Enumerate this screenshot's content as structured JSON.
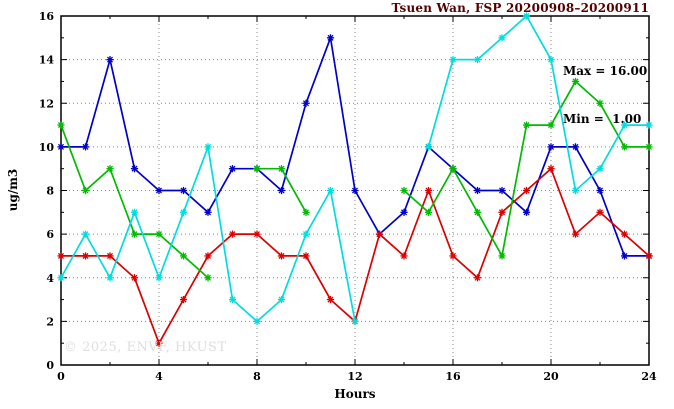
{
  "title": "Tsuen Wan, FSP 20200908–20200911",
  "annotation": {
    "max_label": "Max = 16.00",
    "min_label": "Min =  1.00"
  },
  "watermark": "© 2025, ENVF, HKUST",
  "colors": {
    "title": "#550000",
    "annotation": "#000000",
    "axis": "#000000",
    "grid": "#888888",
    "watermark": "#dedede",
    "background": "#ffffff"
  },
  "chart_data": {
    "type": "line",
    "title": "Tsuen Wan, FSP 20200908–20200911",
    "xlabel": "Hours",
    "ylabel": "ug/m3",
    "xlim": [
      0,
      24
    ],
    "ylim": [
      0,
      16
    ],
    "x_major_ticks": [
      0,
      4,
      8,
      12,
      16,
      20,
      24
    ],
    "x_minor_step": 2,
    "y_major_ticks": [
      0,
      2,
      4,
      6,
      8,
      10,
      12,
      14,
      16
    ],
    "y_minor_step": 1,
    "grid": true,
    "legend_position": "none",
    "marker": "asterisk",
    "stat_max": 16.0,
    "stat_min": 1.0,
    "x": [
      0,
      1,
      2,
      3,
      4,
      5,
      6,
      7,
      8,
      9,
      10,
      11,
      12,
      13,
      14,
      15,
      16,
      17,
      18,
      19,
      20,
      21,
      22,
      23,
      24
    ],
    "series": [
      {
        "name": "blue",
        "color": "#0000cc",
        "values": [
          10,
          10,
          14,
          9,
          8,
          8,
          7,
          9,
          9,
          8,
          12,
          15,
          8,
          6,
          7,
          10,
          9,
          8,
          8,
          7,
          10,
          10,
          8,
          5,
          5
        ]
      },
      {
        "name": "red",
        "color": "#dd0000",
        "values": [
          5,
          5,
          5,
          4,
          1,
          3,
          5,
          6,
          6,
          5,
          5,
          3,
          2,
          6,
          5,
          8,
          5,
          4,
          7,
          8,
          9,
          6,
          7,
          6,
          5
        ]
      },
      {
        "name": "green",
        "color": "#00bb00",
        "values": [
          11,
          8,
          9,
          6,
          6,
          5,
          4,
          null,
          9,
          9,
          7,
          null,
          null,
          null,
          8,
          7,
          9,
          7,
          5,
          11,
          11,
          13,
          12,
          10,
          10
        ]
      },
      {
        "name": "cyan",
        "color": "#00dddd",
        "values": [
          4,
          6,
          4,
          7,
          4,
          7,
          10,
          3,
          2,
          3,
          6,
          8,
          2,
          null,
          null,
          10,
          14,
          14,
          15,
          16,
          14,
          8,
          9,
          11,
          11
        ]
      }
    ]
  }
}
